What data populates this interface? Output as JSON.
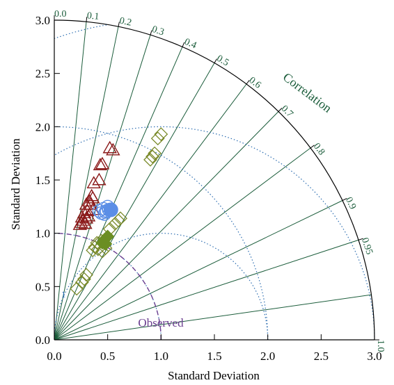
{
  "chart_data": {
    "type": "scatter",
    "subtype": "taylor-diagram",
    "xlabel": "Standard Deviation",
    "ylabel": "Standard Deviation",
    "correlation_title": "Correlation",
    "observed_label": "Observed",
    "rms_small_label": "1",
    "std_range": [
      0,
      3.0
    ],
    "std_ticks": [
      "0.0",
      "0.5",
      "1.0",
      "1.5",
      "2.0",
      "2.5",
      "3.0"
    ],
    "correlation_ticks": [
      "0.0",
      "0.1",
      "0.2",
      "0.3",
      "0.4",
      "0.5",
      "0.6",
      "0.7",
      "0.8",
      "0.9",
      "0.95",
      "1.0"
    ],
    "correlation_lines": [
      0.1,
      0.2,
      0.3,
      0.4,
      0.5,
      0.6,
      0.7,
      0.8,
      0.9,
      0.95,
      0.99
    ],
    "rms_contours": [
      1.0,
      2.0,
      3.0
    ],
    "observed_std": 1.0,
    "colors": {
      "axis": "#000000",
      "correlation": "#1a5c3a",
      "rms": "#2a6cb0",
      "observed": "#6a3d8f",
      "series_triangle": "#8b1a1a",
      "series_circle": "#5b8ee6",
      "series_diamond_open": "#7a8a2a",
      "series_diamond_filled": "#6b8e23"
    },
    "series": [
      {
        "marker": "triangle-open",
        "color_key": "series_triangle",
        "points": [
          {
            "x": 0.52,
            "y": 1.8
          },
          {
            "x": 0.55,
            "y": 1.78
          },
          {
            "x": 0.45,
            "y": 1.65
          },
          {
            "x": 0.43,
            "y": 1.64
          },
          {
            "x": 0.42,
            "y": 1.5
          },
          {
            "x": 0.37,
            "y": 1.47
          },
          {
            "x": 0.35,
            "y": 1.35
          },
          {
            "x": 0.36,
            "y": 1.33
          },
          {
            "x": 0.33,
            "y": 1.3
          },
          {
            "x": 0.34,
            "y": 1.27
          },
          {
            "x": 0.3,
            "y": 1.27
          },
          {
            "x": 0.36,
            "y": 1.22
          },
          {
            "x": 0.31,
            "y": 1.21
          },
          {
            "x": 0.28,
            "y": 1.19
          },
          {
            "x": 0.32,
            "y": 1.16
          },
          {
            "x": 0.26,
            "y": 1.15
          },
          {
            "x": 0.3,
            "y": 1.14
          },
          {
            "x": 0.27,
            "y": 1.12
          },
          {
            "x": 0.25,
            "y": 1.1
          },
          {
            "x": 0.29,
            "y": 1.09
          },
          {
            "x": 0.24,
            "y": 1.08
          }
        ]
      },
      {
        "marker": "circle-open",
        "color_key": "series_circle",
        "points": [
          {
            "x": 0.42,
            "y": 1.21
          },
          {
            "x": 0.44,
            "y": 1.19
          },
          {
            "x": 0.46,
            "y": 1.23
          },
          {
            "x": 0.47,
            "y": 1.18
          },
          {
            "x": 0.49,
            "y": 1.21
          },
          {
            "x": 0.5,
            "y": 1.25
          },
          {
            "x": 0.48,
            "y": 1.2
          },
          {
            "x": 0.51,
            "y": 1.22
          }
        ]
      },
      {
        "marker": "circle-filled",
        "color_key": "series_circle",
        "points": [
          {
            "x": 0.53,
            "y": 1.22
          }
        ]
      },
      {
        "marker": "diamond-open",
        "color_key": "series_diamond_open",
        "points": [
          {
            "x": 1.0,
            "y": 1.93
          },
          {
            "x": 0.97,
            "y": 1.89
          },
          {
            "x": 0.94,
            "y": 1.75
          },
          {
            "x": 0.92,
            "y": 1.72
          },
          {
            "x": 0.9,
            "y": 1.69
          },
          {
            "x": 0.62,
            "y": 1.14
          },
          {
            "x": 0.6,
            "y": 1.12
          },
          {
            "x": 0.57,
            "y": 1.09
          },
          {
            "x": 0.52,
            "y": 1.04
          },
          {
            "x": 0.44,
            "y": 0.93
          },
          {
            "x": 0.4,
            "y": 0.91
          },
          {
            "x": 0.38,
            "y": 0.87
          },
          {
            "x": 0.41,
            "y": 0.85
          },
          {
            "x": 0.36,
            "y": 0.84
          },
          {
            "x": 0.45,
            "y": 0.83
          },
          {
            "x": 0.48,
            "y": 0.86
          },
          {
            "x": 0.3,
            "y": 0.61
          },
          {
            "x": 0.28,
            "y": 0.57
          },
          {
            "x": 0.26,
            "y": 0.54
          },
          {
            "x": 0.21,
            "y": 0.48
          }
        ]
      },
      {
        "marker": "diamond-filled",
        "color_key": "series_diamond_filled",
        "points": [
          {
            "x": 0.5,
            "y": 0.97
          },
          {
            "x": 0.47,
            "y": 0.94
          },
          {
            "x": 0.45,
            "y": 0.91
          },
          {
            "x": 0.48,
            "y": 0.9
          }
        ]
      }
    ]
  }
}
